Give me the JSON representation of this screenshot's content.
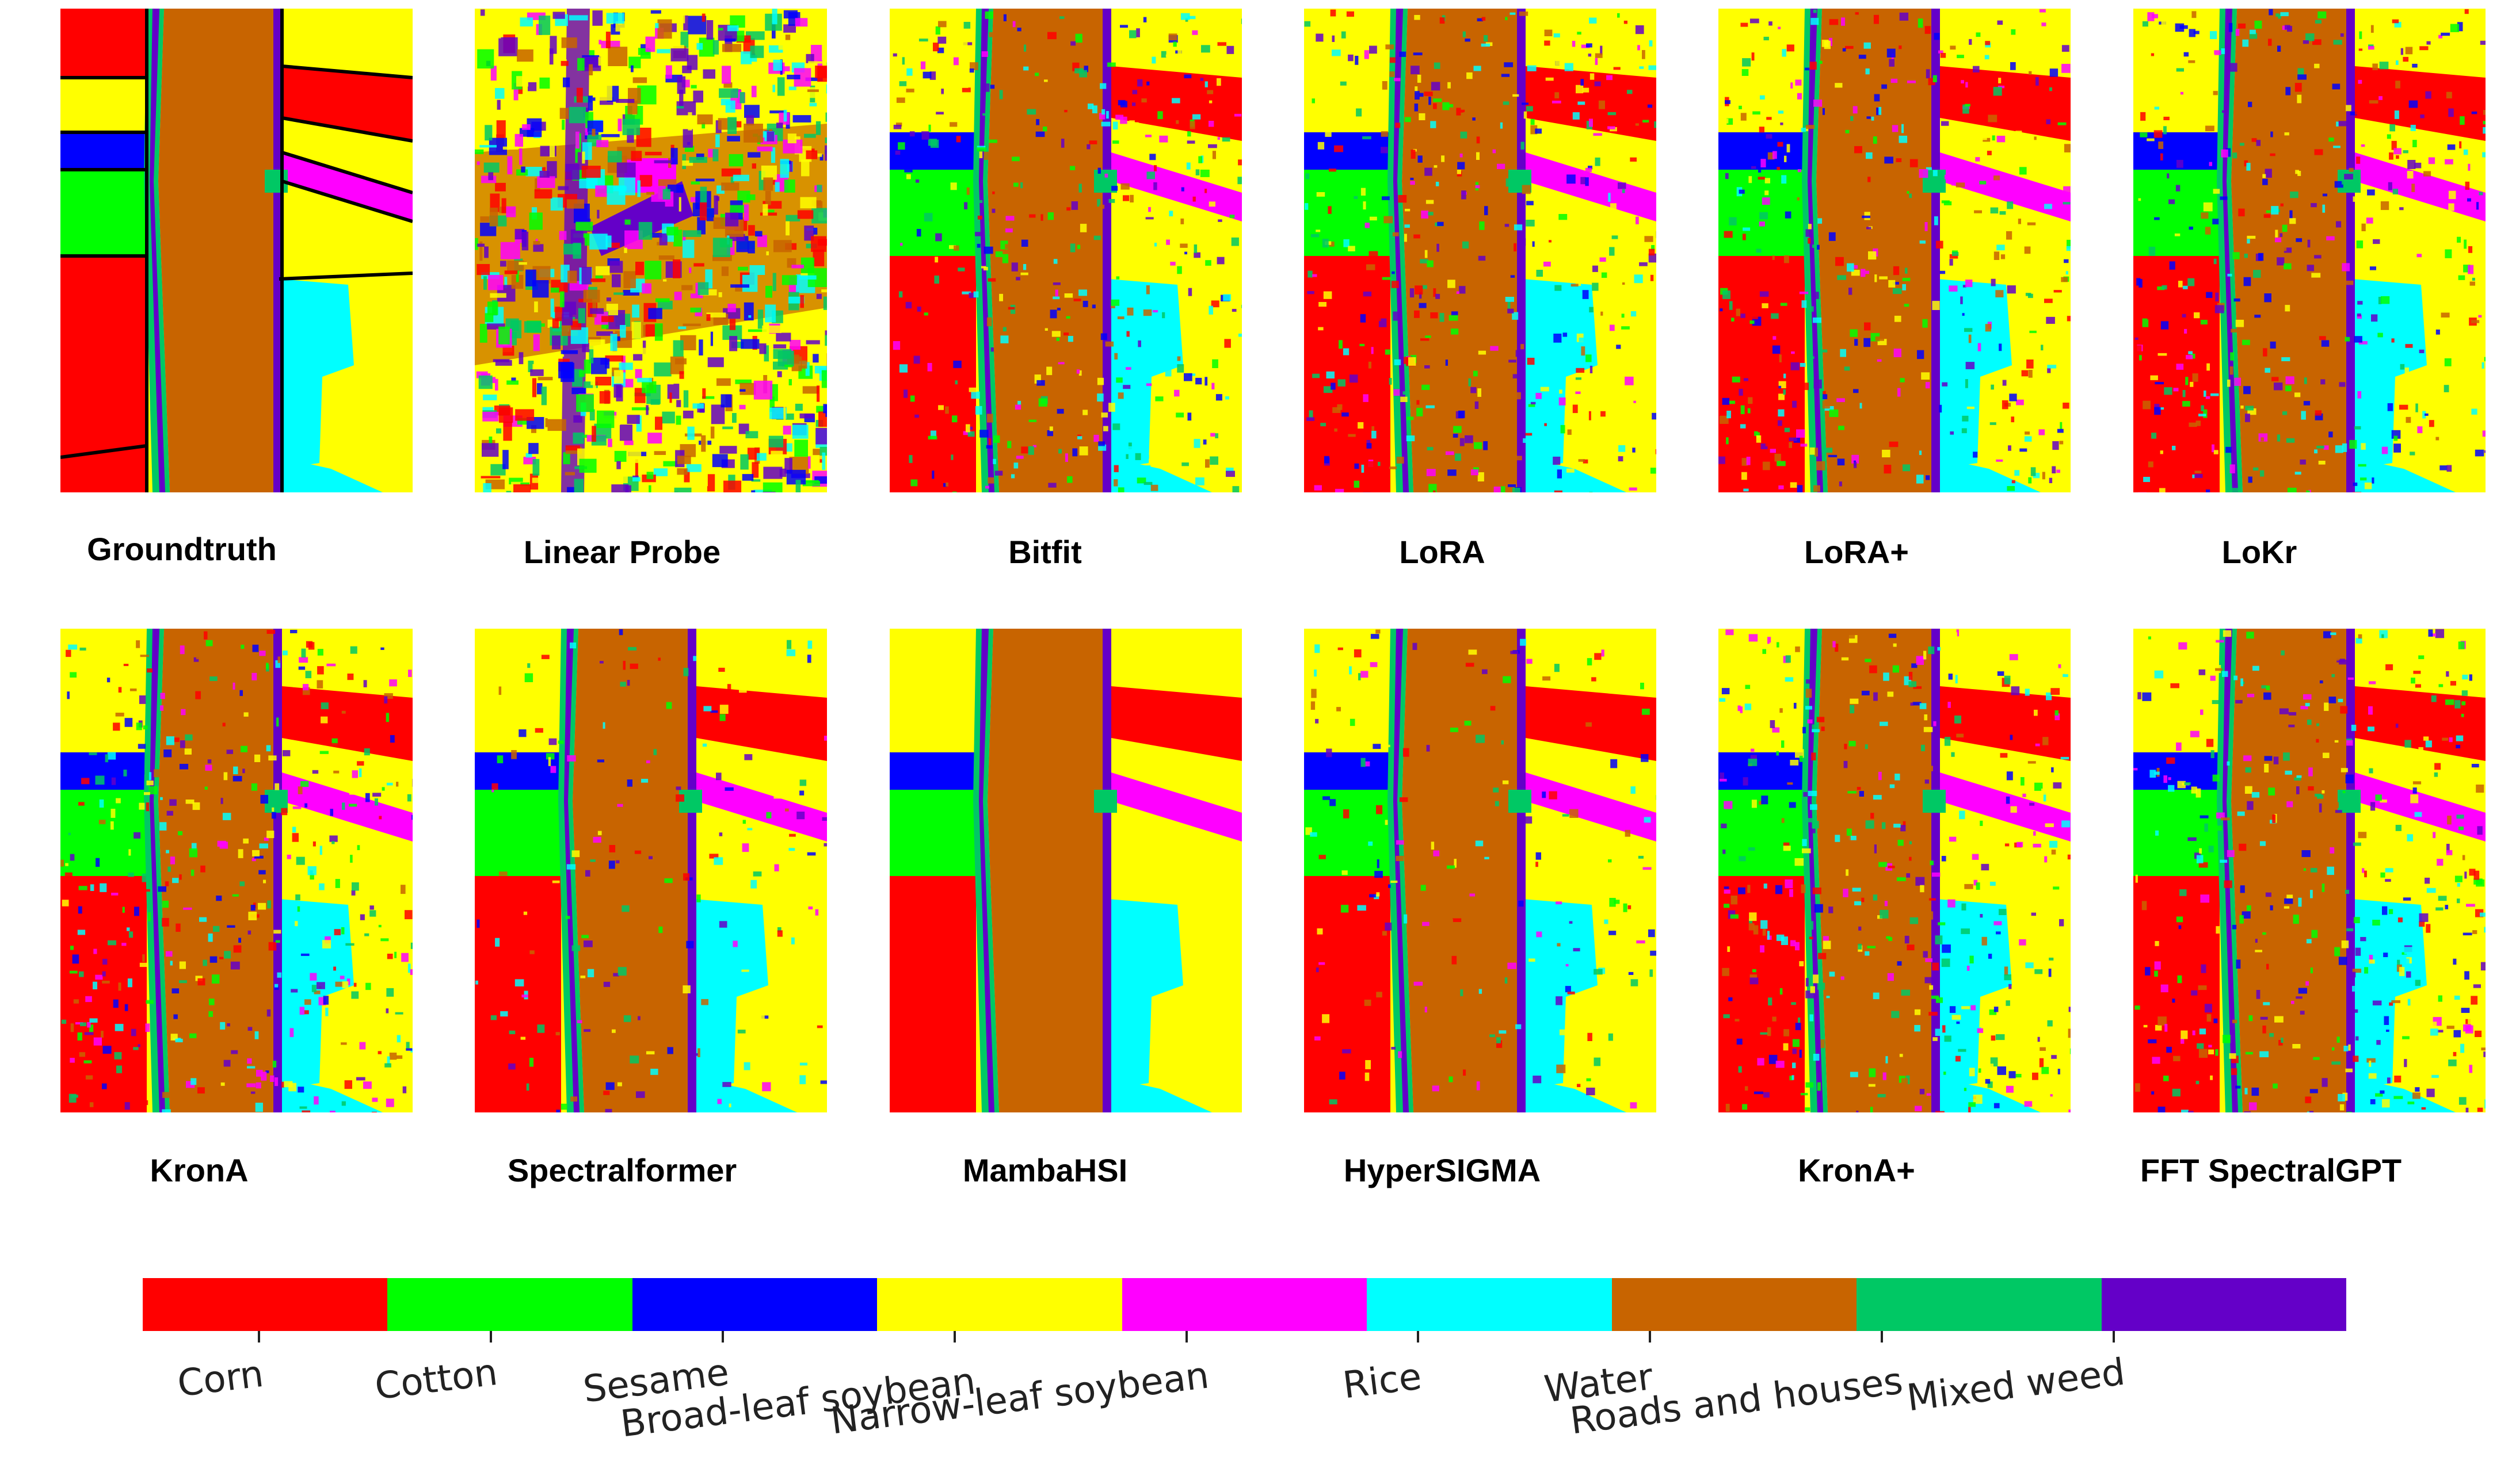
{
  "panels": [
    {
      "id": "groundtruth",
      "title": "Groundtruth",
      "noise": 0
    },
    {
      "id": "linear-probe",
      "title": "Linear Probe",
      "noise": 3
    },
    {
      "id": "bitfit",
      "title": "Bitfit",
      "noise": 2
    },
    {
      "id": "lora",
      "title": "LoRA",
      "noise": 2
    },
    {
      "id": "lora-plus",
      "title": "LoRA+",
      "noise": 2
    },
    {
      "id": "lokr",
      "title": "LoKr",
      "noise": 2
    },
    {
      "id": "krona",
      "title": "KronA",
      "noise": 2
    },
    {
      "id": "spectralformer",
      "title": "Spectralformer",
      "noise": 1
    },
    {
      "id": "mambahsi",
      "title": "MambaHSI",
      "noise": 0
    },
    {
      "id": "hypersigma",
      "title": "HyperSIGMA",
      "noise": 1
    },
    {
      "id": "krona-plus",
      "title": "KronA+",
      "noise": 2
    },
    {
      "id": "fft-spectralgpt",
      "title": "FFT SpectralGPT",
      "noise": 2
    }
  ],
  "legend": [
    {
      "label": "Corn",
      "color": "#ff0000"
    },
    {
      "label": "Cotton",
      "color": "#00ff00"
    },
    {
      "label": "Sesame",
      "color": "#0000ff"
    },
    {
      "label": "Broad-leaf soybean",
      "color": "#ffff00"
    },
    {
      "label": "Narrow-leaf soybean",
      "color": "#ff00ff"
    },
    {
      "label": "Rice",
      "color": "#00ffff"
    },
    {
      "label": "Water",
      "color": "#c86400"
    },
    {
      "label": "Roads and houses",
      "color": "#00c864"
    },
    {
      "label": "Mixed weed",
      "color": "#6400c8"
    }
  ]
}
